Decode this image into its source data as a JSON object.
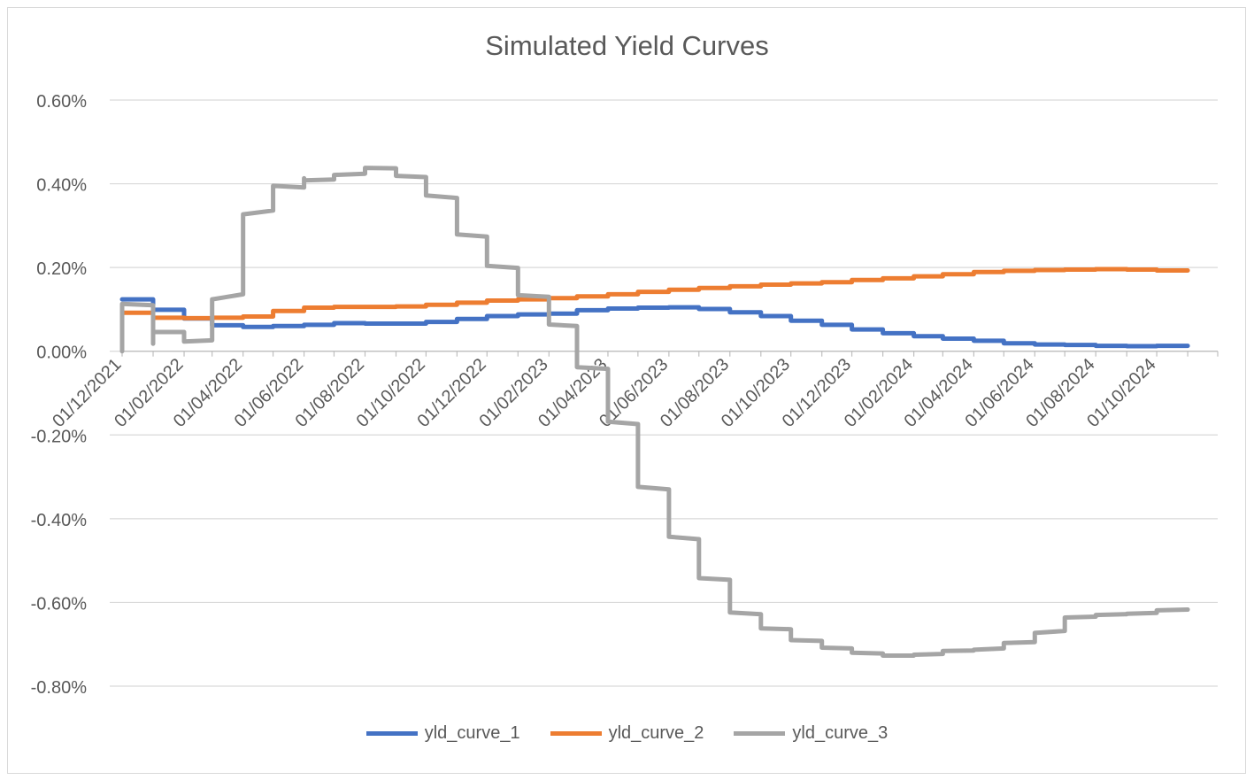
{
  "chart_data": {
    "type": "line",
    "title": "Simulated Yield Curves",
    "xlabel": "",
    "ylabel": "",
    "ylim": [
      -0.8,
      0.6
    ],
    "y_ticks": [
      "0.60%",
      "0.40%",
      "0.20%",
      "0.00%",
      "-0.20%",
      "-0.40%",
      "-0.60%",
      "-0.80%"
    ],
    "y_tick_values": [
      0.6,
      0.4,
      0.2,
      0.0,
      -0.2,
      -0.4,
      -0.6,
      -0.8
    ],
    "x_tick_labels": [
      "01/12/2021",
      "01/02/2022",
      "01/04/2022",
      "01/06/2022",
      "01/08/2022",
      "01/10/2022",
      "01/12/2022",
      "01/02/2023",
      "01/04/2023",
      "01/06/2023",
      "01/08/2023",
      "01/10/2023",
      "01/12/2023",
      "01/02/2024",
      "01/04/2024",
      "01/06/2024",
      "01/08/2024",
      "01/10/2024"
    ],
    "x_tick_dates": [
      "2021-12-01",
      "2022-02-01",
      "2022-04-01",
      "2022-06-01",
      "2022-08-01",
      "2022-10-01",
      "2022-12-01",
      "2023-02-01",
      "2023-04-01",
      "2023-06-01",
      "2023-08-01",
      "2023-10-01",
      "2023-12-01",
      "2024-02-01",
      "2024-04-01",
      "2024-06-01",
      "2024-08-01",
      "2024-10-01"
    ],
    "x_range": [
      "2021-12-01",
      "2024-12-01"
    ],
    "grid": true,
    "legend_position": "bottom",
    "series": [
      {
        "name": "yld_curve_1",
        "color": "#4472c4",
        "points": [
          [
            "2021-12-01",
            0.124
          ],
          [
            "2022-01-01",
            0.124
          ],
          [
            "2022-01-01",
            0.099
          ],
          [
            "2022-02-01",
            0.099
          ],
          [
            "2022-02-01",
            0.078
          ],
          [
            "2022-03-01",
            0.078
          ],
          [
            "2022-03-01",
            0.062
          ],
          [
            "2022-04-01",
            0.062
          ],
          [
            "2022-04-01",
            0.058
          ],
          [
            "2022-05-01",
            0.058
          ],
          [
            "2022-05-01",
            0.06
          ],
          [
            "2022-06-01",
            0.06
          ],
          [
            "2022-06-01",
            0.063
          ],
          [
            "2022-07-01",
            0.063
          ],
          [
            "2022-07-01",
            0.067
          ],
          [
            "2022-08-01",
            0.067
          ],
          [
            "2022-08-01",
            0.066
          ],
          [
            "2022-09-01",
            0.066
          ],
          [
            "2022-09-01",
            0.066
          ],
          [
            "2022-10-01",
            0.066
          ],
          [
            "2022-10-01",
            0.07
          ],
          [
            "2022-11-01",
            0.07
          ],
          [
            "2022-11-01",
            0.077
          ],
          [
            "2022-12-01",
            0.077
          ],
          [
            "2022-12-01",
            0.084
          ],
          [
            "2023-01-01",
            0.084
          ],
          [
            "2023-01-01",
            0.088
          ],
          [
            "2023-02-01",
            0.088
          ],
          [
            "2023-02-01",
            0.09
          ],
          [
            "2023-03-01",
            0.09
          ],
          [
            "2023-03-01",
            0.098
          ],
          [
            "2023-04-01",
            0.098
          ],
          [
            "2023-04-01",
            0.102
          ],
          [
            "2023-05-01",
            0.102
          ],
          [
            "2023-05-01",
            0.104
          ],
          [
            "2023-06-01",
            0.104
          ],
          [
            "2023-06-01",
            0.105
          ],
          [
            "2023-07-01",
            0.105
          ],
          [
            "2023-07-01",
            0.101
          ],
          [
            "2023-08-01",
            0.101
          ],
          [
            "2023-08-01",
            0.093
          ],
          [
            "2023-09-01",
            0.093
          ],
          [
            "2023-09-01",
            0.084
          ],
          [
            "2023-10-01",
            0.084
          ],
          [
            "2023-10-01",
            0.073
          ],
          [
            "2023-11-01",
            0.073
          ],
          [
            "2023-11-01",
            0.063
          ],
          [
            "2023-12-01",
            0.063
          ],
          [
            "2023-12-01",
            0.052
          ],
          [
            "2024-01-01",
            0.052
          ],
          [
            "2024-01-01",
            0.043
          ],
          [
            "2024-02-01",
            0.043
          ],
          [
            "2024-02-01",
            0.036
          ],
          [
            "2024-03-01",
            0.036
          ],
          [
            "2024-03-01",
            0.03
          ],
          [
            "2024-04-01",
            0.03
          ],
          [
            "2024-04-01",
            0.025
          ],
          [
            "2024-05-01",
            0.025
          ],
          [
            "2024-05-01",
            0.019
          ],
          [
            "2024-06-01",
            0.019
          ],
          [
            "2024-06-01",
            0.016
          ],
          [
            "2024-07-01",
            0.016
          ],
          [
            "2024-07-01",
            0.015
          ],
          [
            "2024-08-01",
            0.015
          ],
          [
            "2024-08-01",
            0.013
          ],
          [
            "2024-09-01",
            0.013
          ],
          [
            "2024-09-01",
            0.012
          ],
          [
            "2024-10-01",
            0.012
          ],
          [
            "2024-10-01",
            0.013
          ],
          [
            "2024-11-01",
            0.013
          ]
        ]
      },
      {
        "name": "yld_curve_2",
        "color": "#ed7d31",
        "points": [
          [
            "2021-12-01",
            0.092
          ],
          [
            "2022-01-01",
            0.092
          ],
          [
            "2022-01-01",
            0.08
          ],
          [
            "2022-02-01",
            0.08
          ],
          [
            "2022-02-01",
            0.079
          ],
          [
            "2022-03-01",
            0.079
          ],
          [
            "2022-03-01",
            0.08
          ],
          [
            "2022-04-01",
            0.08
          ],
          [
            "2022-04-01",
            0.083
          ],
          [
            "2022-05-01",
            0.083
          ],
          [
            "2022-05-01",
            0.096
          ],
          [
            "2022-06-01",
            0.096
          ],
          [
            "2022-06-01",
            0.104
          ],
          [
            "2022-07-01",
            0.104
          ],
          [
            "2022-07-01",
            0.106
          ],
          [
            "2022-08-01",
            0.106
          ],
          [
            "2022-08-01",
            0.106
          ],
          [
            "2022-09-01",
            0.106
          ],
          [
            "2022-09-01",
            0.107
          ],
          [
            "2022-10-01",
            0.107
          ],
          [
            "2022-10-01",
            0.111
          ],
          [
            "2022-11-01",
            0.111
          ],
          [
            "2022-11-01",
            0.116
          ],
          [
            "2022-12-01",
            0.116
          ],
          [
            "2022-12-01",
            0.121
          ],
          [
            "2023-01-01",
            0.121
          ],
          [
            "2023-01-01",
            0.124
          ],
          [
            "2023-02-01",
            0.124
          ],
          [
            "2023-02-01",
            0.127
          ],
          [
            "2023-03-01",
            0.127
          ],
          [
            "2023-03-01",
            0.131
          ],
          [
            "2023-04-01",
            0.131
          ],
          [
            "2023-04-01",
            0.136
          ],
          [
            "2023-05-01",
            0.136
          ],
          [
            "2023-05-01",
            0.142
          ],
          [
            "2023-06-01",
            0.142
          ],
          [
            "2023-06-01",
            0.147
          ],
          [
            "2023-07-01",
            0.147
          ],
          [
            "2023-07-01",
            0.151
          ],
          [
            "2023-08-01",
            0.151
          ],
          [
            "2023-08-01",
            0.155
          ],
          [
            "2023-09-01",
            0.155
          ],
          [
            "2023-09-01",
            0.159
          ],
          [
            "2023-10-01",
            0.159
          ],
          [
            "2023-10-01",
            0.162
          ],
          [
            "2023-11-01",
            0.162
          ],
          [
            "2023-11-01",
            0.165
          ],
          [
            "2023-12-01",
            0.165
          ],
          [
            "2023-12-01",
            0.17
          ],
          [
            "2024-01-01",
            0.17
          ],
          [
            "2024-01-01",
            0.174
          ],
          [
            "2024-02-01",
            0.174
          ],
          [
            "2024-02-01",
            0.179
          ],
          [
            "2024-03-01",
            0.179
          ],
          [
            "2024-03-01",
            0.184
          ],
          [
            "2024-04-01",
            0.184
          ],
          [
            "2024-04-01",
            0.189
          ],
          [
            "2024-05-01",
            0.189
          ],
          [
            "2024-05-01",
            0.192
          ],
          [
            "2024-06-01",
            0.192
          ],
          [
            "2024-06-01",
            0.194
          ],
          [
            "2024-07-01",
            0.194
          ],
          [
            "2024-07-01",
            0.195
          ],
          [
            "2024-08-01",
            0.195
          ],
          [
            "2024-08-01",
            0.196
          ],
          [
            "2024-09-01",
            0.196
          ],
          [
            "2024-09-01",
            0.195
          ],
          [
            "2024-10-01",
            0.195
          ],
          [
            "2024-10-01",
            0.193
          ],
          [
            "2024-11-01",
            0.193
          ]
        ]
      },
      {
        "name": "yld_curve_3",
        "color": "#a5a5a5",
        "points": [
          [
            "2021-12-01",
            0.0
          ],
          [
            "2021-12-01",
            0.113
          ],
          [
            "2022-01-01",
            0.11
          ],
          [
            "2022-01-01",
            0.018
          ],
          [
            "2022-01-01",
            0.046
          ],
          [
            "2022-02-01",
            0.046
          ],
          [
            "2022-02-01",
            0.023
          ],
          [
            "2022-03-01",
            0.026
          ],
          [
            "2022-03-01",
            0.124
          ],
          [
            "2022-04-01",
            0.136
          ],
          [
            "2022-04-01",
            0.327
          ],
          [
            "2022-05-01",
            0.336
          ],
          [
            "2022-05-01",
            0.395
          ],
          [
            "2022-06-01",
            0.391
          ],
          [
            "2022-06-01",
            0.413
          ],
          [
            "2022-06-01",
            0.408
          ],
          [
            "2022-07-01",
            0.41
          ],
          [
            "2022-07-01",
            0.421
          ],
          [
            "2022-08-01",
            0.424
          ],
          [
            "2022-08-01",
            0.438
          ],
          [
            "2022-09-01",
            0.437
          ],
          [
            "2022-09-01",
            0.419
          ],
          [
            "2022-10-01",
            0.416
          ],
          [
            "2022-10-01",
            0.372
          ],
          [
            "2022-11-01",
            0.366
          ],
          [
            "2022-11-01",
            0.279
          ],
          [
            "2022-12-01",
            0.274
          ],
          [
            "2022-12-01",
            0.204
          ],
          [
            "2023-01-01",
            0.199
          ],
          [
            "2023-01-01",
            0.134
          ],
          [
            "2023-02-01",
            0.13
          ],
          [
            "2023-02-01",
            0.064
          ],
          [
            "2023-03-01",
            0.06
          ],
          [
            "2023-03-01",
            -0.038
          ],
          [
            "2023-04-01",
            -0.042
          ],
          [
            "2023-04-01",
            -0.168
          ],
          [
            "2023-05-01",
            -0.174
          ],
          [
            "2023-05-01",
            -0.324
          ],
          [
            "2023-06-01",
            -0.33
          ],
          [
            "2023-06-01",
            -0.443
          ],
          [
            "2023-07-01",
            -0.449
          ],
          [
            "2023-07-01",
            -0.542
          ],
          [
            "2023-08-01",
            -0.546
          ],
          [
            "2023-08-01",
            -0.624
          ],
          [
            "2023-09-01",
            -0.628
          ],
          [
            "2023-09-01",
            -0.662
          ],
          [
            "2023-10-01",
            -0.664
          ],
          [
            "2023-10-01",
            -0.69
          ],
          [
            "2023-11-01",
            -0.692
          ],
          [
            "2023-11-01",
            -0.708
          ],
          [
            "2023-12-01",
            -0.71
          ],
          [
            "2023-12-01",
            -0.72
          ],
          [
            "2024-01-01",
            -0.722
          ],
          [
            "2024-01-01",
            -0.727
          ],
          [
            "2024-02-01",
            -0.727
          ],
          [
            "2024-02-01",
            -0.725
          ],
          [
            "2024-03-01",
            -0.723
          ],
          [
            "2024-03-01",
            -0.716
          ],
          [
            "2024-04-01",
            -0.715
          ],
          [
            "2024-04-01",
            -0.713
          ],
          [
            "2024-05-01",
            -0.71
          ],
          [
            "2024-05-01",
            -0.697
          ],
          [
            "2024-06-01",
            -0.695
          ],
          [
            "2024-06-01",
            -0.673
          ],
          [
            "2024-07-01",
            -0.668
          ],
          [
            "2024-07-01",
            -0.636
          ],
          [
            "2024-08-01",
            -0.634
          ],
          [
            "2024-08-01",
            -0.63
          ],
          [
            "2024-09-01",
            -0.628
          ],
          [
            "2024-09-01",
            -0.627
          ],
          [
            "2024-10-01",
            -0.625
          ],
          [
            "2024-10-01",
            -0.619
          ],
          [
            "2024-11-01",
            -0.617
          ]
        ]
      }
    ]
  }
}
